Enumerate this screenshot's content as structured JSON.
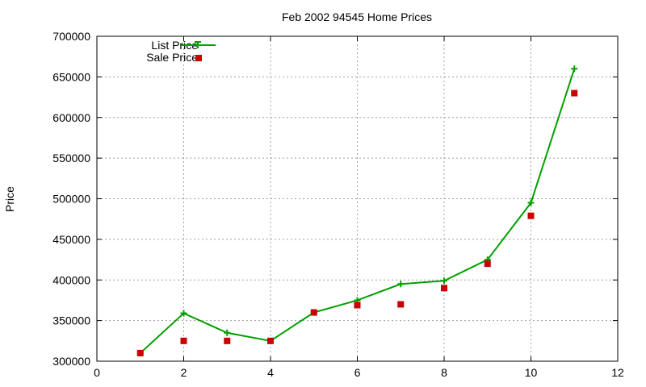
{
  "chart_data": {
    "type": "line",
    "title": "Feb 2002 94545 Home Prices",
    "xlabel": "",
    "ylabel": "Price",
    "xlim": [
      0,
      12
    ],
    "ylim": [
      300000,
      700000
    ],
    "xticks": [
      0,
      2,
      4,
      6,
      8,
      10,
      12
    ],
    "yticks": [
      300000,
      350000,
      400000,
      450000,
      500000,
      550000,
      600000,
      650000,
      700000
    ],
    "grid": true,
    "legend_position": "top-left",
    "series": [
      {
        "name": "List Price",
        "style": "line-with-plus-markers",
        "color": "#00a000",
        "x": [
          1,
          2,
          3,
          4,
          5,
          6,
          7,
          8,
          9,
          10,
          11
        ],
        "y": [
          310000,
          359000,
          335000,
          325000,
          360000,
          375000,
          395000,
          399000,
          425000,
          495000,
          660000
        ]
      },
      {
        "name": "Sale Price",
        "style": "square-markers",
        "color": "#cc0000",
        "x": [
          1,
          2,
          3,
          4,
          5,
          6,
          7,
          8,
          9,
          10,
          11
        ],
        "y": [
          310000,
          325000,
          325000,
          325000,
          360000,
          369000,
          370000,
          390000,
          420000,
          479000,
          630000
        ]
      }
    ]
  }
}
